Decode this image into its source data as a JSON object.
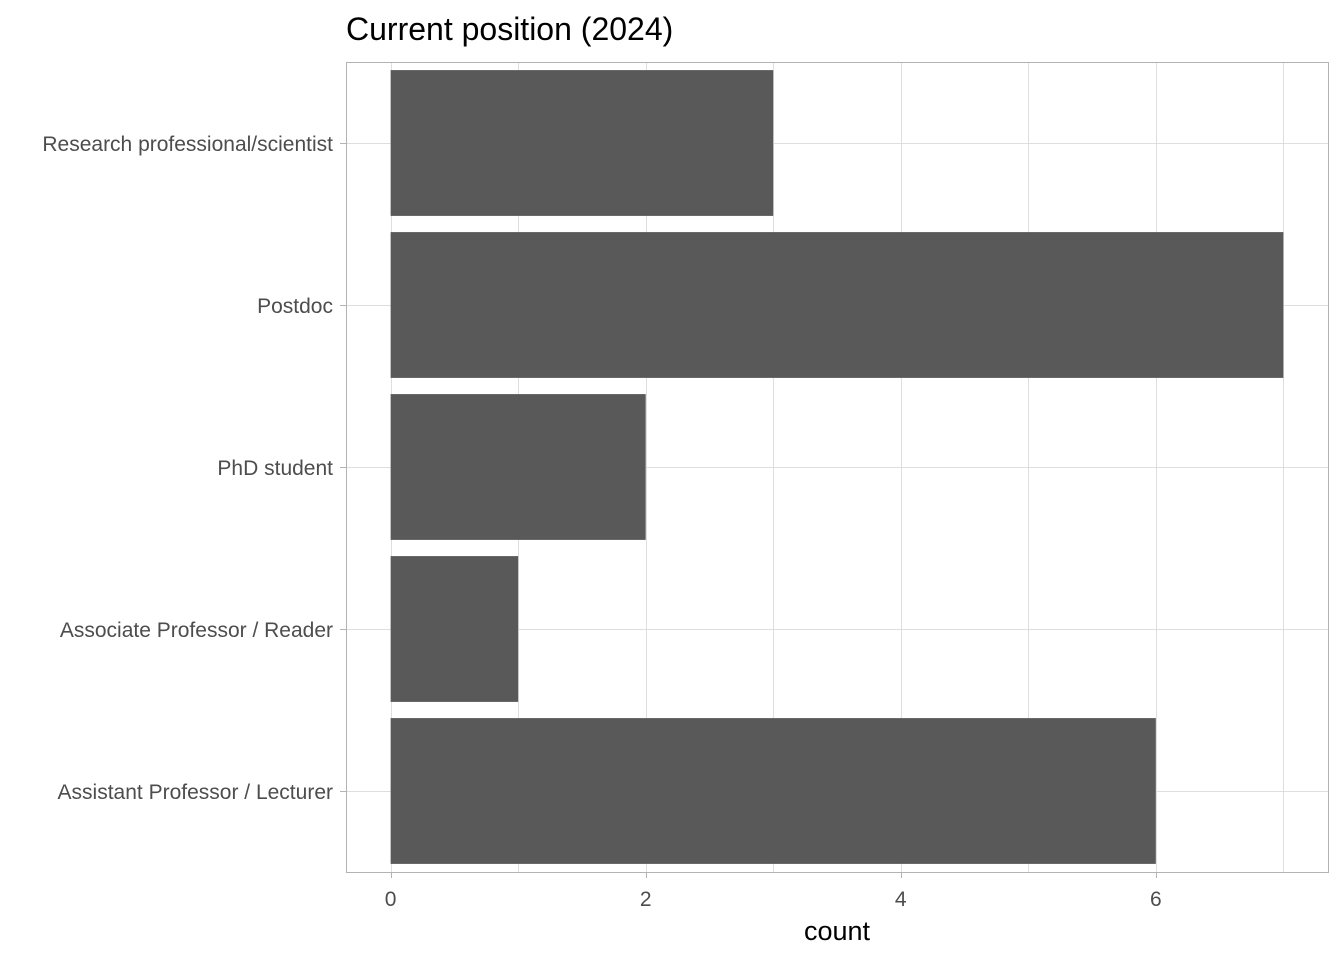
{
  "chart_data": {
    "type": "bar",
    "orientation": "horizontal",
    "title": "Current position (2024)",
    "xlabel": "count",
    "ylabel": "",
    "categories": [
      "Research professional/scientist",
      "Postdoc",
      "PhD student",
      "Associate Professor / Reader",
      "Assistant Professor / Lecturer"
    ],
    "values": [
      3,
      7,
      2,
      1,
      6
    ],
    "xlim": [
      -0.35,
      7.35
    ],
    "x_ticks": [
      0,
      2,
      4,
      6
    ],
    "x_minor_ticks": [
      1,
      3,
      5,
      7
    ],
    "grid": true,
    "legend": "none",
    "colors": {
      "bar": "#595959",
      "grid": "#dedede",
      "panel_border": "#b3b3b3",
      "tick_text": "#4d4d4d",
      "title_text": "#000000"
    }
  }
}
